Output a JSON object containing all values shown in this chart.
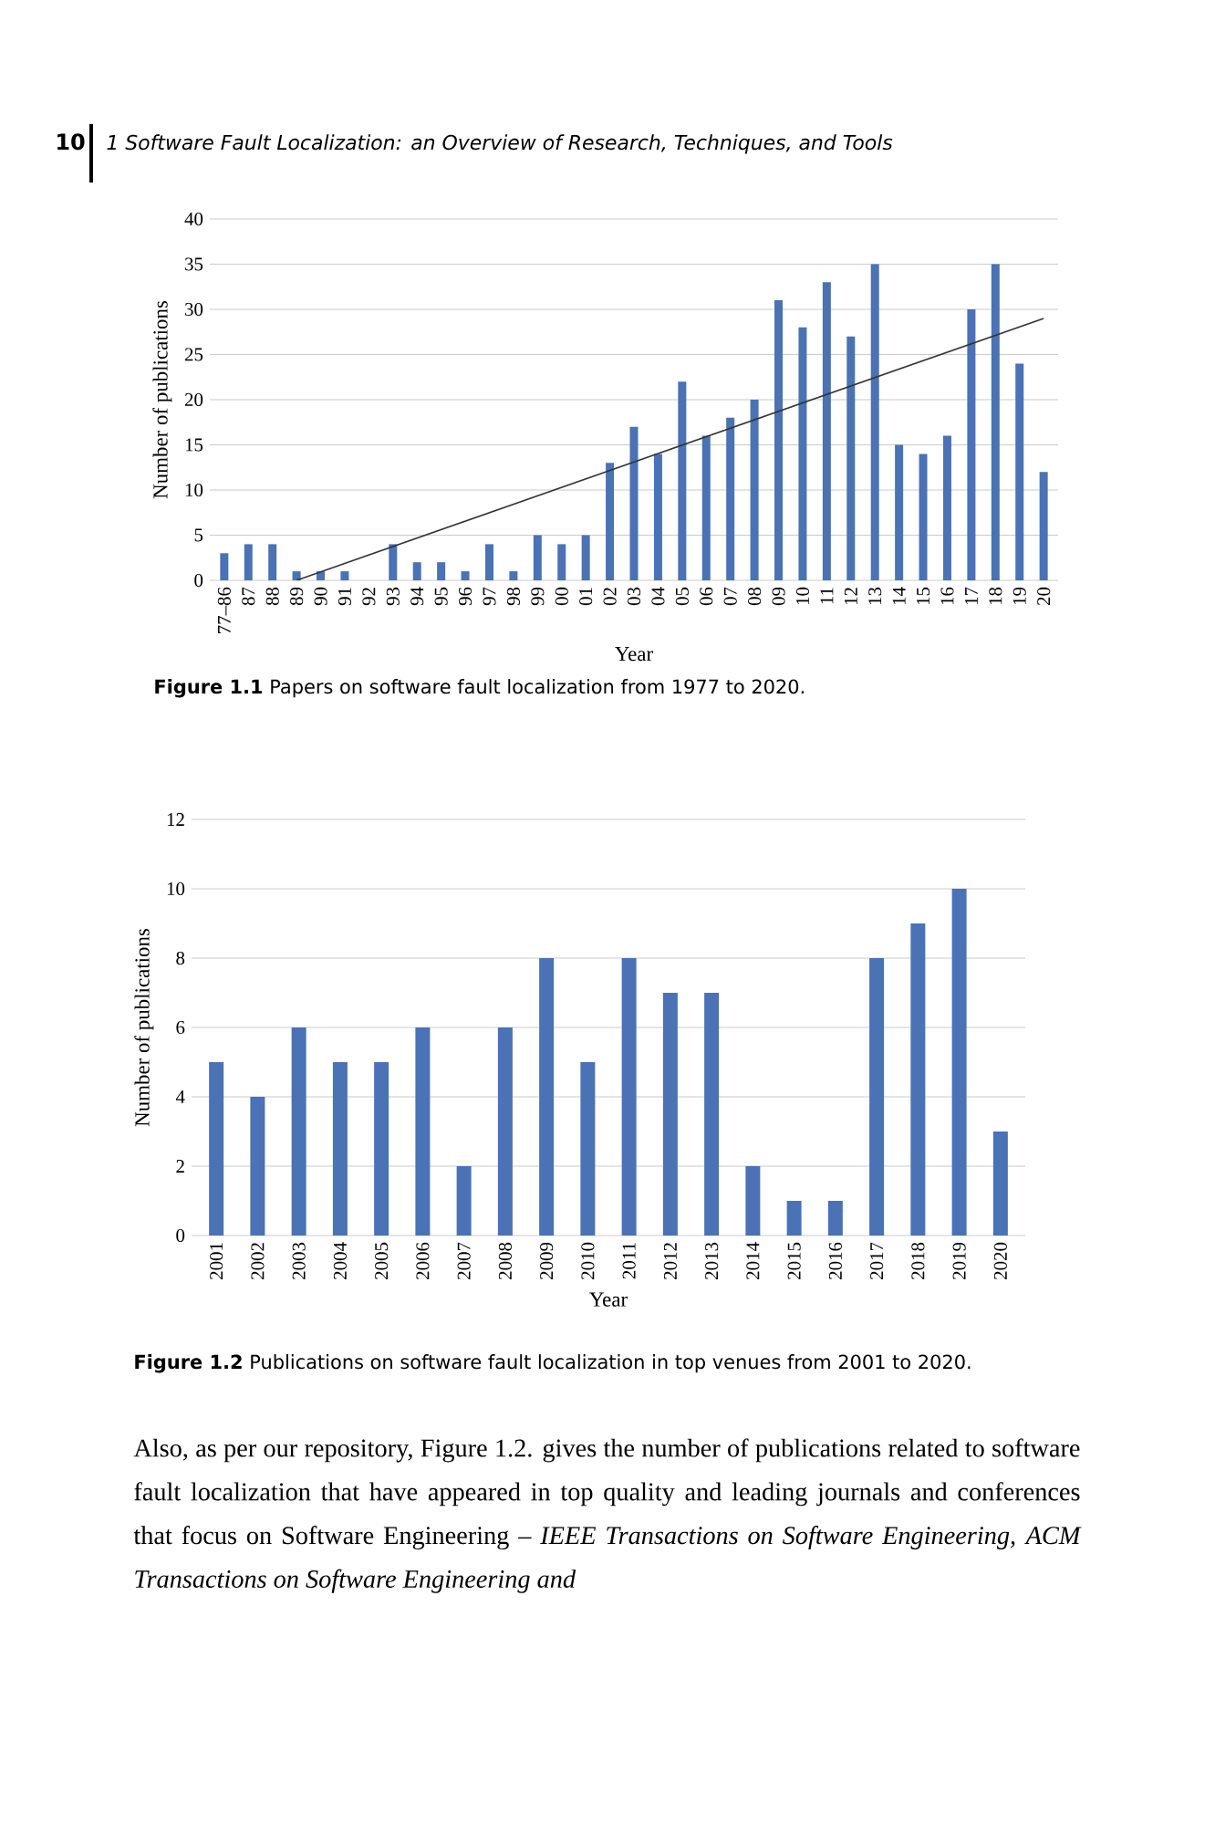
{
  "chart_data": [
    {
      "type": "bar",
      "xlabel": "Year",
      "ylabel": "Number of publications",
      "categories": [
        "77–86",
        "87",
        "88",
        "89",
        "90",
        "91",
        "92",
        "93",
        "94",
        "95",
        "96",
        "97",
        "98",
        "99",
        "00",
        "01",
        "02",
        "03",
        "04",
        "05",
        "06",
        "07",
        "08",
        "09",
        "10",
        "11",
        "12",
        "13",
        "14",
        "15",
        "16",
        "17",
        "18",
        "19",
        "20"
      ],
      "series": [
        {
          "color": "#4a72b4",
          "values": [
            3,
            4,
            4,
            1,
            1,
            1,
            0,
            4,
            2,
            2,
            1,
            4,
            1,
            5,
            4,
            5,
            13,
            17,
            14,
            22,
            16,
            18,
            20,
            31,
            28,
            33,
            27,
            35,
            15,
            14,
            16,
            30,
            35,
            24,
            12
          ]
        },
        {
          "type": "line",
          "color": "#333333",
          "x": [
            "89",
            "20"
          ],
          "values": [
            0,
            29
          ]
        }
      ],
      "ylim": [
        0,
        40
      ],
      "yticks": [
        0,
        5,
        10,
        15,
        20,
        25,
        30,
        35,
        40
      ],
      "grid": "y",
      "annotations": [
        "10",
        "1 Software Fault Localization: an Overview of Research, Techniques, and Tools",
        "**Figure 1.1**   Papers on software fault localization from 1977 to 2020."
      ]
    },
    {
      "type": "bar",
      "xlabel": "Year",
      "ylabel": "Number of publications",
      "categories": [
        "2001",
        "2002",
        "2003",
        "2004",
        "2005",
        "2006",
        "2007",
        "2008",
        "2009",
        "2010",
        "2011",
        "2012",
        "2013",
        "2014",
        "2015",
        "2016",
        "2017",
        "2018",
        "2019",
        "2020"
      ],
      "series": [
        {
          "color": "#4a72b4",
          "values": [
            5,
            4,
            6,
            5,
            5,
            6,
            2,
            6,
            8,
            5,
            8,
            7,
            7,
            2,
            1,
            1,
            8,
            9,
            10,
            3
          ]
        }
      ],
      "ylim": [
        0,
        12
      ],
      "yticks": [
        0,
        2,
        4,
        6,
        8,
        10,
        12
      ],
      "grid": "y",
      "annotations": [
        "**Figure 1.2**   Publications on software fault localization in top venues from 2001 to 2020.",
        "Also, as per our repository, Figure 1.2. gives the number of publications related to software fault localization that have appeared in top quality and leading journals and conferences that focus on Software Engineering – *IEEE Transactions on Software Engineering, ACM Transactions on Software Engineering and*"
      ]
    }
  ]
}
